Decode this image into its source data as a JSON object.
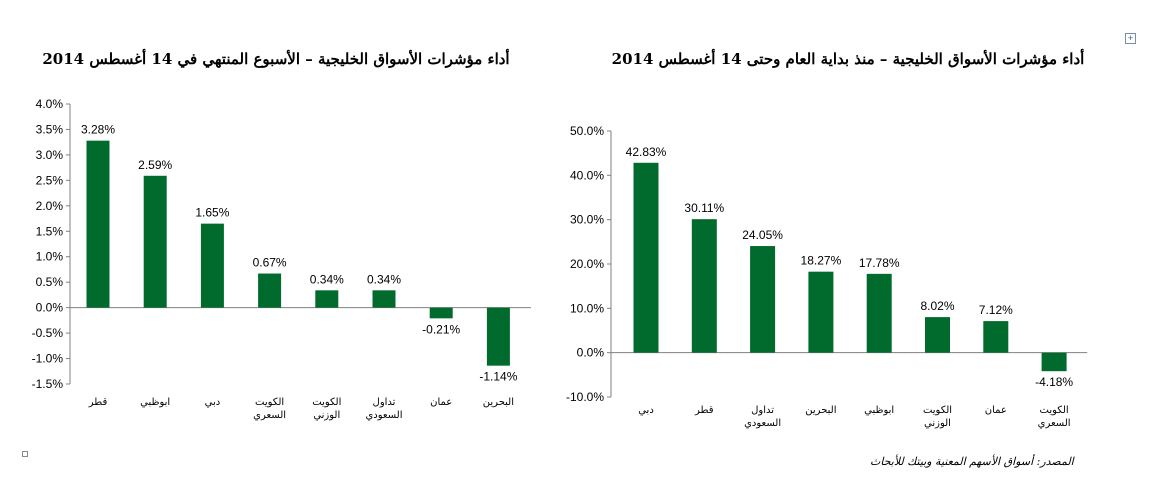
{
  "source_note": "المصدر: أسواق الأسهم المعنية وبيتك للأبحاث",
  "chart_data": [
    {
      "type": "bar",
      "title": "أداء مؤشرات الأسواق الخليجية – الأسبوع المنتهي في 14 أغسطس 2014",
      "categories": [
        "قطر",
        "ابوظبي",
        "دبي",
        "الكويت السعري",
        "الكويت الوزني",
        "تداول السعودي",
        "عمان",
        "البحرين"
      ],
      "values": [
        3.28,
        2.59,
        1.65,
        0.67,
        0.34,
        0.34,
        -0.21,
        -1.14
      ],
      "value_labels": [
        "3.28%",
        "2.59%",
        "1.65%",
        "0.67%",
        "0.34%",
        "0.34%",
        "-0.21%",
        "-1.14%"
      ],
      "ylim": [
        -1.5,
        4.0
      ],
      "yticks": [
        4.0,
        3.5,
        3.0,
        2.5,
        2.0,
        1.5,
        1.0,
        0.5,
        0.0,
        -0.5,
        -1.0,
        -1.5
      ],
      "ytick_labels": [
        "4.0%",
        "3.5%",
        "3.0%",
        "2.5%",
        "2.0%",
        "1.5%",
        "1.0%",
        "0.5%",
        "0.0%",
        "-0.5%",
        "-1.0%",
        "-1.5%"
      ],
      "bar_color": "#006b2c",
      "grid": false,
      "legend": "none"
    },
    {
      "type": "bar",
      "title": "أداء مؤشرات الأسواق الخليجية – منذ بداية العام وحتى 14 أغسطس 2014",
      "categories": [
        "دبي",
        "قطر",
        "تداول السعودي",
        "البحرين",
        "ابوظبي",
        "الكويت الوزني",
        "عمان",
        "الكويت السعري"
      ],
      "values": [
        42.83,
        30.11,
        24.05,
        18.27,
        17.78,
        8.02,
        7.12,
        -4.18
      ],
      "value_labels": [
        "42.83%",
        "30.11%",
        "24.05%",
        "18.27%",
        "17.78%",
        "8.02%",
        "7.12%",
        "-4.18%"
      ],
      "ylim": [
        -10.0,
        50.0
      ],
      "yticks": [
        50.0,
        40.0,
        30.0,
        20.0,
        10.0,
        0.0,
        -10.0
      ],
      "ytick_labels": [
        "50.0%",
        "40.0%",
        "30.0%",
        "20.0%",
        "10.0%",
        "0.0%",
        "-10.0%"
      ],
      "bar_color": "#006b2c",
      "grid": false,
      "legend": "none"
    }
  ]
}
